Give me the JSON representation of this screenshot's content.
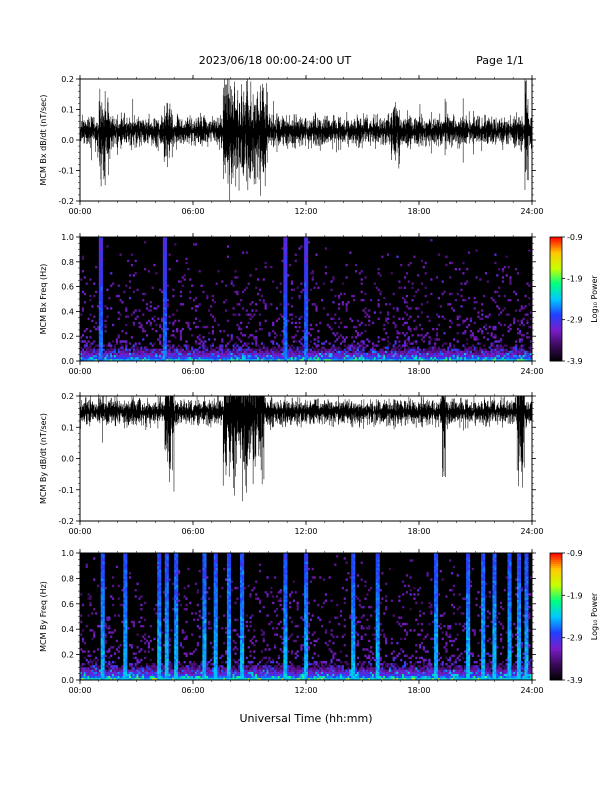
{
  "header": {
    "title": "2023/06/18  00:00-24:00 UT",
    "page": "Page 1/1"
  },
  "x_axis": {
    "label": "Universal Time (hh:mm)",
    "ticks": [
      "00:00",
      "06:00",
      "12:00",
      "18:00",
      "24:00"
    ],
    "range_hours": [
      0,
      24
    ]
  },
  "colorbar": {
    "label": "Log₁₀ Power",
    "ticks": [
      "-0.9",
      "-1.9",
      "-2.9",
      "-3.9"
    ],
    "range": [
      -3.9,
      -0.9
    ],
    "colors": [
      "#000000",
      "#3a0a5a",
      "#7a1cc8",
      "#2040ff",
      "#00c8ff",
      "#00ff80",
      "#c8ff00",
      "#ffc800",
      "#ff0000"
    ]
  },
  "chart_data": [
    {
      "type": "line",
      "ylabel": "MCM Bx dB/dt (nT/sec)",
      "ylim": [
        -0.2,
        0.2
      ],
      "yticks": [
        "0.2",
        "0.1",
        "0.0",
        "-0.1",
        "-0.2"
      ],
      "xlim": [
        0,
        24
      ],
      "baseline": 0.03,
      "typical_amplitude": 0.07,
      "bursts": [
        {
          "start_h": 1.0,
          "end_h": 1.6,
          "amplitude": 0.18
        },
        {
          "start_h": 4.4,
          "end_h": 4.9,
          "amplitude": 0.15
        },
        {
          "start_h": 7.6,
          "end_h": 10.0,
          "amplitude": 0.25
        },
        {
          "start_h": 16.5,
          "end_h": 17.0,
          "amplitude": 0.14
        },
        {
          "start_h": 23.6,
          "end_h": 23.8,
          "amplitude": 0.25
        }
      ],
      "color": "#000000"
    },
    {
      "type": "heatmap",
      "ylabel": "MCM Bx Freq (Hz)",
      "ylim": [
        0,
        1.0
      ],
      "yticks": [
        "1.0",
        "0.8",
        "0.6",
        "0.4",
        "0.2",
        "0.0"
      ],
      "xlim": [
        0,
        24
      ],
      "zlim": [
        -3.9,
        -0.9
      ],
      "background_log_power": -3.9,
      "low_freq_band_log_power": -2.9,
      "vertical_streaks_h": [
        1.1,
        4.5,
        10.9,
        12.0
      ],
      "colorbar_label": "Log₁₀ Power"
    },
    {
      "type": "line",
      "ylabel": "MCM By dB/dt (nT/sec)",
      "ylim": [
        -0.2,
        0.2
      ],
      "yticks": [
        "0.2",
        "0.1",
        "0.0",
        "-0.1",
        "-0.2"
      ],
      "xlim": [
        0,
        24
      ],
      "baseline": 0.15,
      "typical_amplitude": 0.06,
      "bursts": [
        {
          "start_h": 4.5,
          "end_h": 5.0,
          "amplitude": 0.3
        },
        {
          "start_h": 7.6,
          "end_h": 9.8,
          "amplitude": 0.35
        },
        {
          "start_h": 19.2,
          "end_h": 19.4,
          "amplitude": 0.3
        },
        {
          "start_h": 23.2,
          "end_h": 23.6,
          "amplitude": 0.35
        }
      ],
      "color": "#000000"
    },
    {
      "type": "heatmap",
      "ylabel": "MCM By Freq (Hz)",
      "ylim": [
        0,
        1.0
      ],
      "yticks": [
        "1.0",
        "0.8",
        "0.6",
        "0.4",
        "0.2",
        "0.0"
      ],
      "xlim": [
        0,
        24
      ],
      "zlim": [
        -3.9,
        -0.9
      ],
      "background_log_power": -3.9,
      "low_freq_band_log_power": -2.7,
      "vertical_streaks_h": [
        1.2,
        2.4,
        4.2,
        4.6,
        5.1,
        6.6,
        7.2,
        7.9,
        8.6,
        10.9,
        12.0,
        14.5,
        15.8,
        18.9,
        20.6,
        21.4,
        22.0,
        22.8,
        23.3,
        23.7
      ],
      "colorbar_label": "Log₁₀ Power"
    }
  ]
}
